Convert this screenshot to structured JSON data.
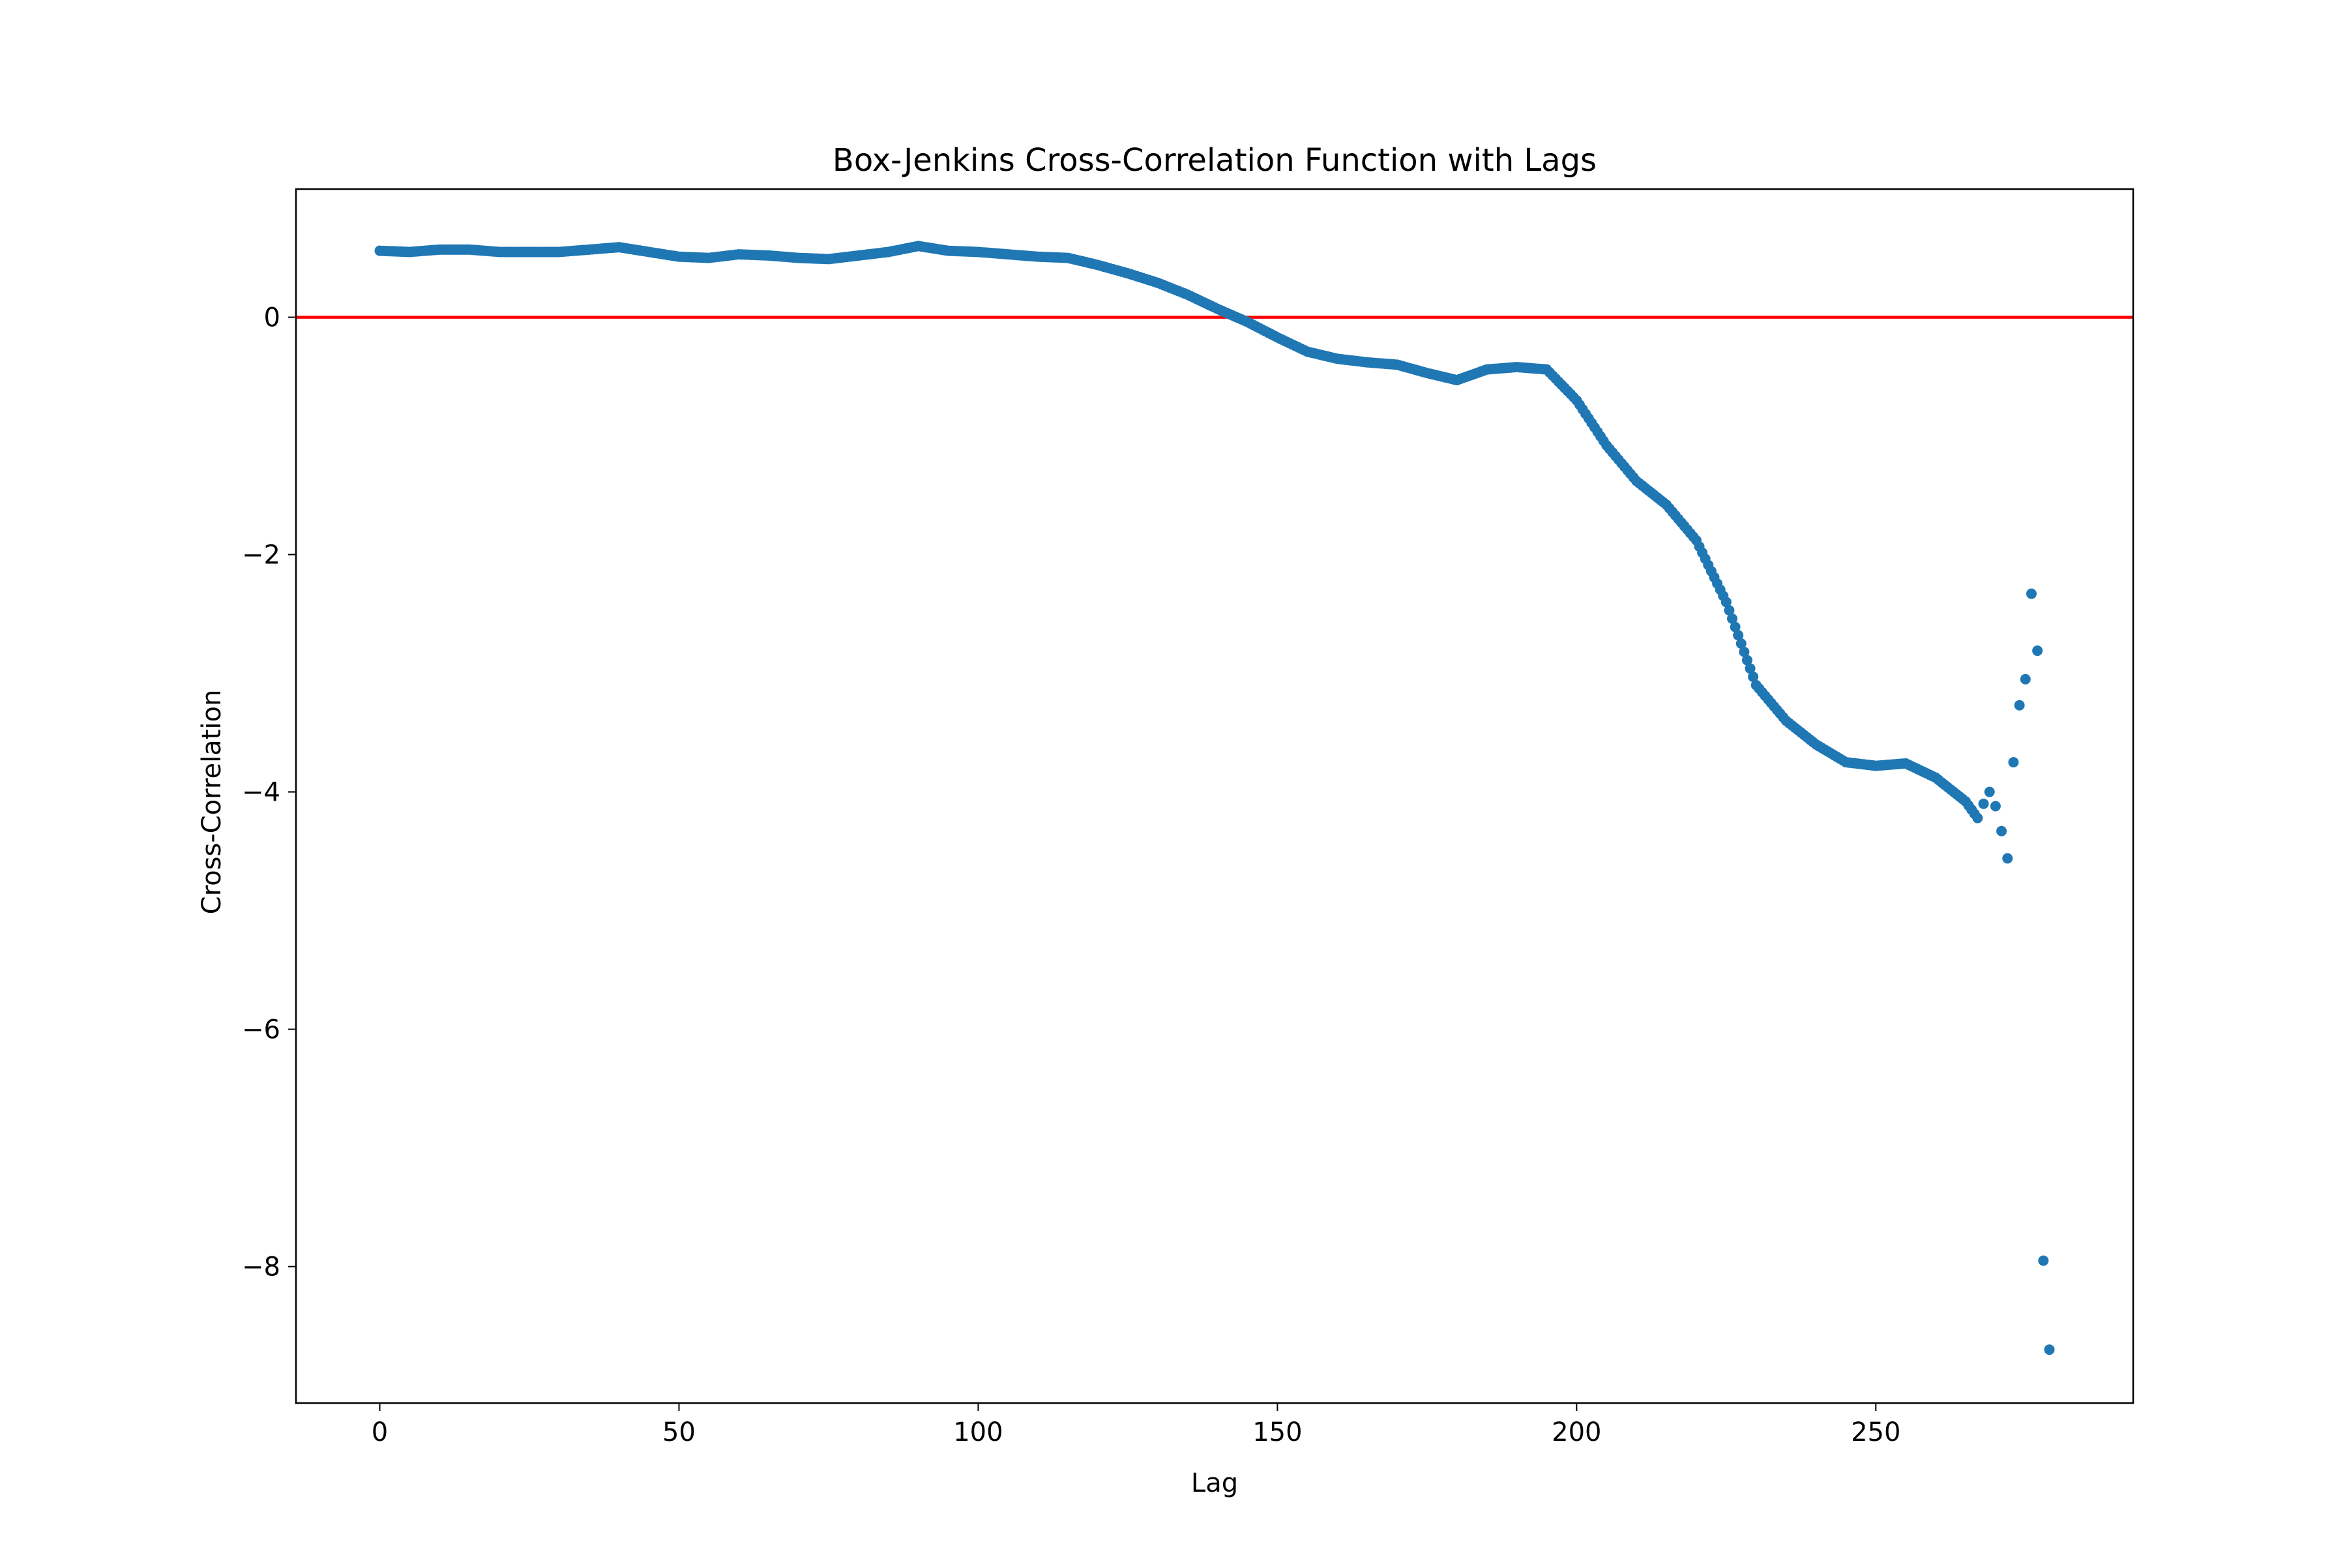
{
  "chart_data": {
    "type": "scatter",
    "title": "Box-Jenkins Cross-Correlation Function with Lags",
    "xlabel": "Lag",
    "ylabel": "Cross-Correlation",
    "xlim": [
      -14,
      293
    ],
    "ylim": [
      -9.15,
      1.08
    ],
    "xticks": [
      0,
      50,
      100,
      150,
      200,
      250
    ],
    "yticks": [
      0,
      -2,
      -4,
      -6,
      -8
    ],
    "grid": false,
    "legend": "none",
    "reference_line": {
      "y": 0,
      "color": "#ff0000"
    },
    "marker_color": "#1f77b4",
    "anchors": [
      [
        0,
        0.56
      ],
      [
        5,
        0.55
      ],
      [
        10,
        0.57
      ],
      [
        15,
        0.57
      ],
      [
        20,
        0.55
      ],
      [
        25,
        0.55
      ],
      [
        30,
        0.55
      ],
      [
        35,
        0.57
      ],
      [
        40,
        0.59
      ],
      [
        45,
        0.55
      ],
      [
        50,
        0.51
      ],
      [
        55,
        0.5
      ],
      [
        60,
        0.53
      ],
      [
        65,
        0.52
      ],
      [
        70,
        0.5
      ],
      [
        75,
        0.49
      ],
      [
        80,
        0.52
      ],
      [
        85,
        0.55
      ],
      [
        90,
        0.6
      ],
      [
        95,
        0.56
      ],
      [
        100,
        0.55
      ],
      [
        105,
        0.53
      ],
      [
        110,
        0.51
      ],
      [
        115,
        0.5
      ],
      [
        120,
        0.44
      ],
      [
        125,
        0.37
      ],
      [
        130,
        0.29
      ],
      [
        135,
        0.19
      ],
      [
        140,
        0.07
      ],
      [
        145,
        -0.04
      ],
      [
        150,
        -0.17
      ],
      [
        155,
        -0.29
      ],
      [
        160,
        -0.35
      ],
      [
        165,
        -0.38
      ],
      [
        170,
        -0.4
      ],
      [
        175,
        -0.47
      ],
      [
        180,
        -0.53
      ],
      [
        185,
        -0.44
      ],
      [
        190,
        -0.42
      ],
      [
        195,
        -0.44
      ],
      [
        200,
        -0.7
      ],
      [
        205,
        -1.08
      ],
      [
        210,
        -1.38
      ],
      [
        215,
        -1.58
      ],
      [
        220,
        -1.88
      ],
      [
        225,
        -2.4
      ],
      [
        230,
        -3.1
      ],
      [
        235,
        -3.4
      ],
      [
        240,
        -3.6
      ],
      [
        245,
        -3.75
      ],
      [
        250,
        -3.78
      ],
      [
        255,
        -3.76
      ],
      [
        260,
        -3.88
      ],
      [
        265,
        -4.08
      ],
      [
        267,
        -4.22
      ]
    ],
    "points_tail": [
      [
        268,
        -4.1
      ],
      [
        269,
        -4.0
      ],
      [
        270,
        -4.12
      ],
      [
        271,
        -4.33
      ],
      [
        272,
        -4.56
      ],
      [
        273,
        -3.75
      ],
      [
        274,
        -3.27
      ],
      [
        275,
        -3.05
      ],
      [
        276,
        -2.33
      ],
      [
        277,
        -2.81
      ],
      [
        278,
        -7.95
      ],
      [
        279,
        -8.7
      ]
    ]
  }
}
